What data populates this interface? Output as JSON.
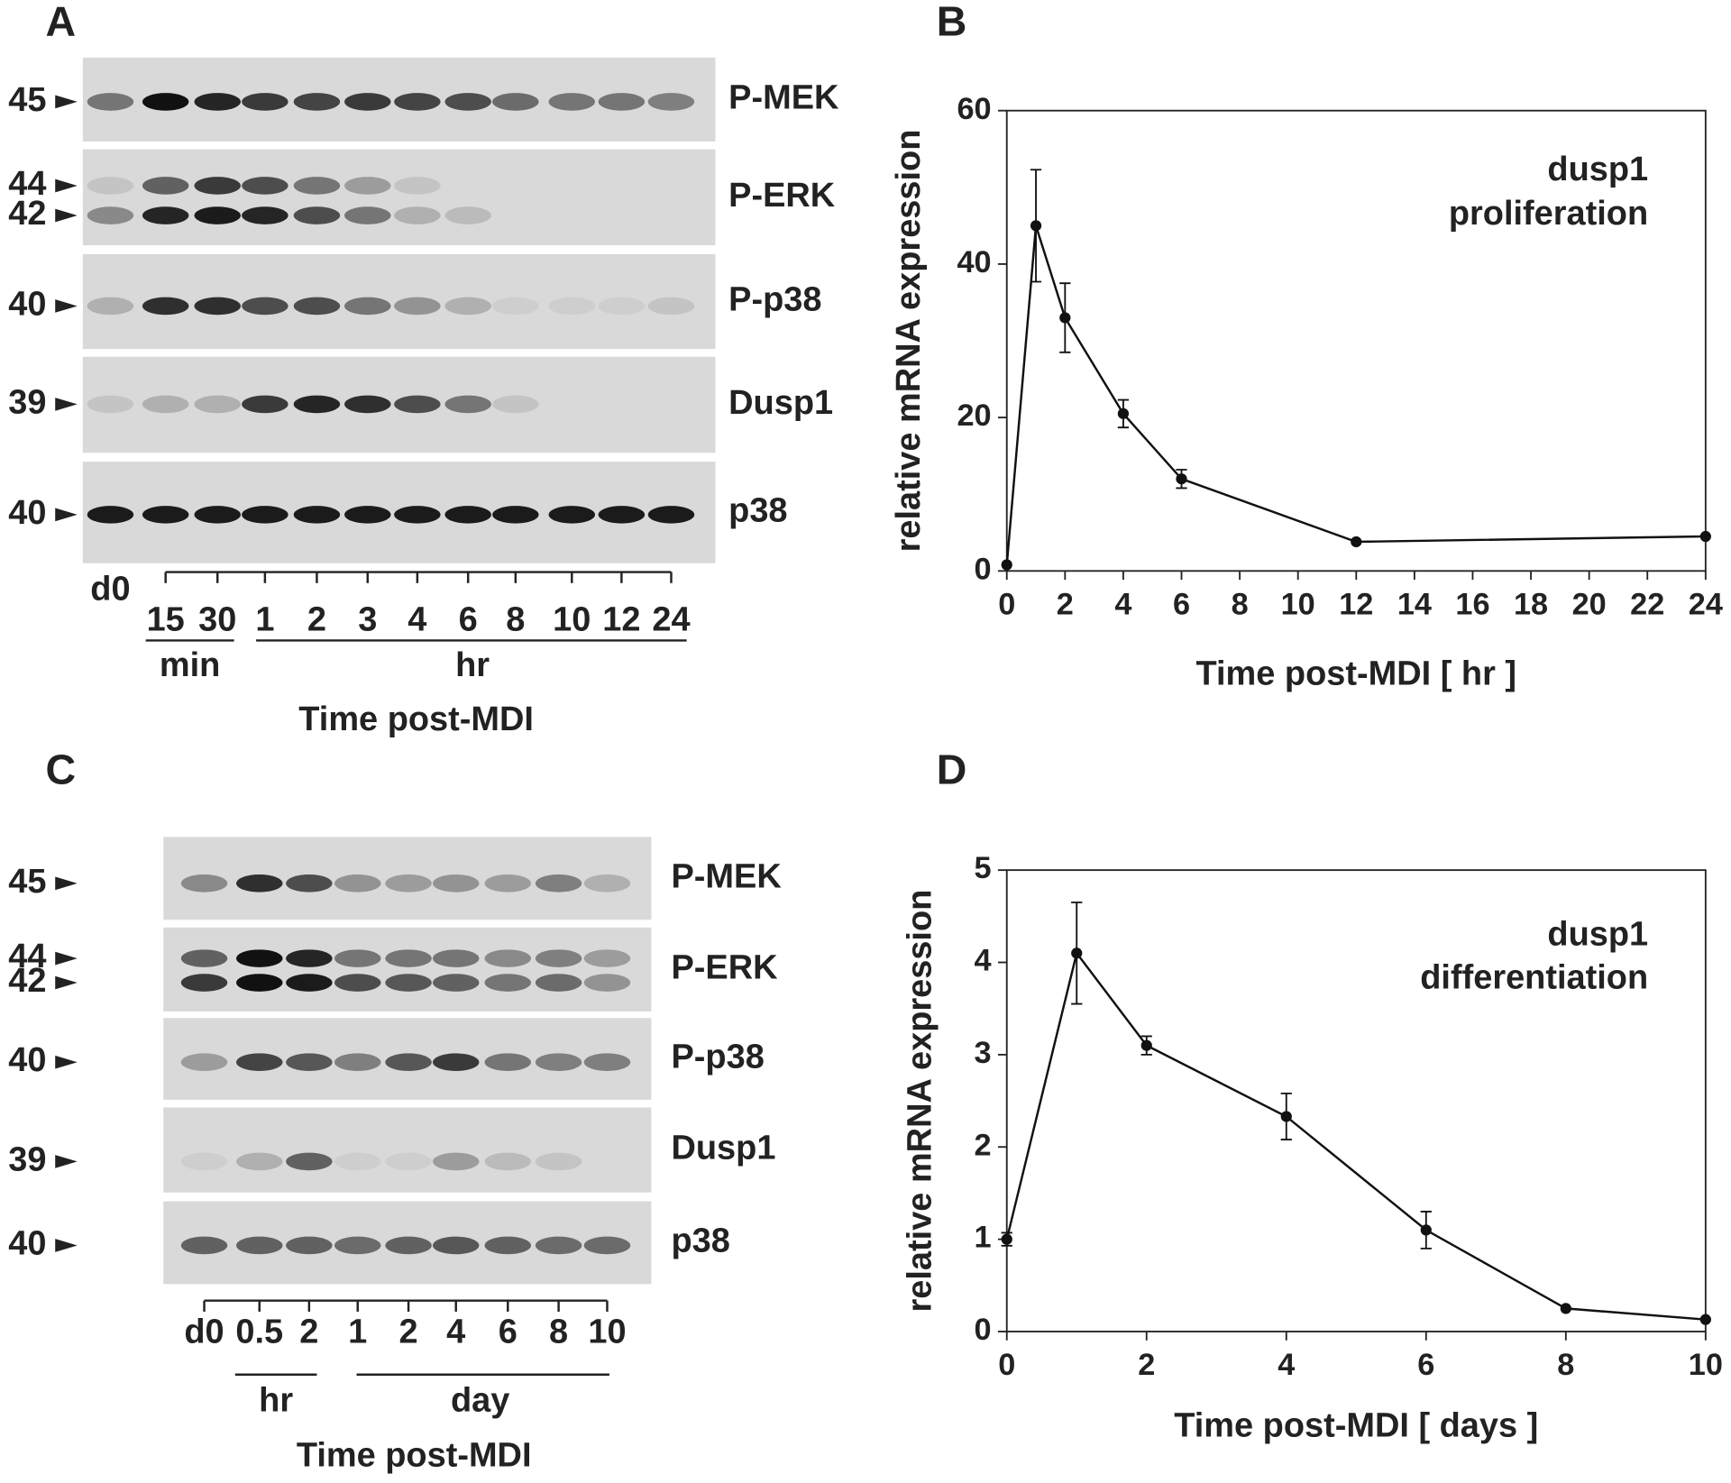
{
  "blots": [
    {
      "panel": "A",
      "rows": [
        {
          "label": "P-MEK",
          "markers": [
            "45"
          ]
        },
        {
          "label": "P-ERK",
          "markers": [
            "44",
            "42"
          ]
        },
        {
          "label": "P-p38",
          "markers": [
            "40"
          ]
        },
        {
          "label": "Dusp1",
          "markers": [
            "39"
          ]
        },
        {
          "label": "p38",
          "markers": [
            "40"
          ]
        }
      ],
      "lanes": [
        "d0",
        "15",
        "30",
        "1",
        "2",
        "3",
        "4",
        "6",
        "8",
        "10",
        "12",
        "24"
      ],
      "groups": [
        "min",
        "hr"
      ],
      "axis_label": "Time post-MDI"
    },
    {
      "panel": "C",
      "rows": [
        {
          "label": "P-MEK",
          "markers": [
            "45"
          ]
        },
        {
          "label": "P-ERK",
          "markers": [
            "44",
            "42"
          ]
        },
        {
          "label": "P-p38",
          "markers": [
            "40"
          ]
        },
        {
          "label": "Dusp1",
          "markers": [
            "39"
          ]
        },
        {
          "label": "p38",
          "markers": [
            "40"
          ]
        }
      ],
      "lanes": [
        "d0",
        "0.5",
        "2",
        "1",
        "2",
        "4",
        "6",
        "8",
        "10"
      ],
      "groups": [
        "hr",
        "day"
      ],
      "axis_label": "Time post-MDI"
    }
  ],
  "chart_data": [
    {
      "type": "line",
      "panel": "B",
      "annotation": [
        "dusp1",
        "proliferation"
      ],
      "xlabel": "Time post-MDI [ hr ]",
      "ylabel": "relative mRNA expression",
      "x": [
        0,
        1,
        2,
        4,
        6,
        12,
        24
      ],
      "values": [
        0.8,
        45,
        33,
        20.5,
        12,
        3.8,
        4.5
      ],
      "errors": [
        null,
        7.3,
        4.5,
        1.8,
        1.2,
        null,
        null
      ],
      "color": "#111111",
      "xlim": [
        0,
        24
      ],
      "xticks": [
        0,
        2,
        4,
        6,
        8,
        10,
        12,
        14,
        16,
        18,
        20,
        22,
        24
      ],
      "ylim": [
        0,
        60
      ],
      "yticks": [
        0,
        20,
        40,
        60
      ]
    },
    {
      "type": "line",
      "panel": "D",
      "annotation": [
        "dusp1",
        "differentiation"
      ],
      "xlabel": "Time post-MDI [ days ]",
      "ylabel": "relative mRNA expression",
      "x": [
        0,
        1,
        2,
        4,
        6,
        8,
        10
      ],
      "values": [
        1,
        4.1,
        3.1,
        2.33,
        1.1,
        0.25,
        0.13
      ],
      "errors": [
        0.07,
        0.55,
        0.1,
        0.25,
        0.2,
        null,
        null
      ],
      "color": "#111111",
      "xlim": [
        0,
        10
      ],
      "xticks": [
        0,
        2,
        4,
        6,
        8,
        10
      ],
      "ylim": [
        0,
        5
      ],
      "yticks": [
        0,
        1,
        2,
        3,
        4,
        5
      ]
    }
  ]
}
